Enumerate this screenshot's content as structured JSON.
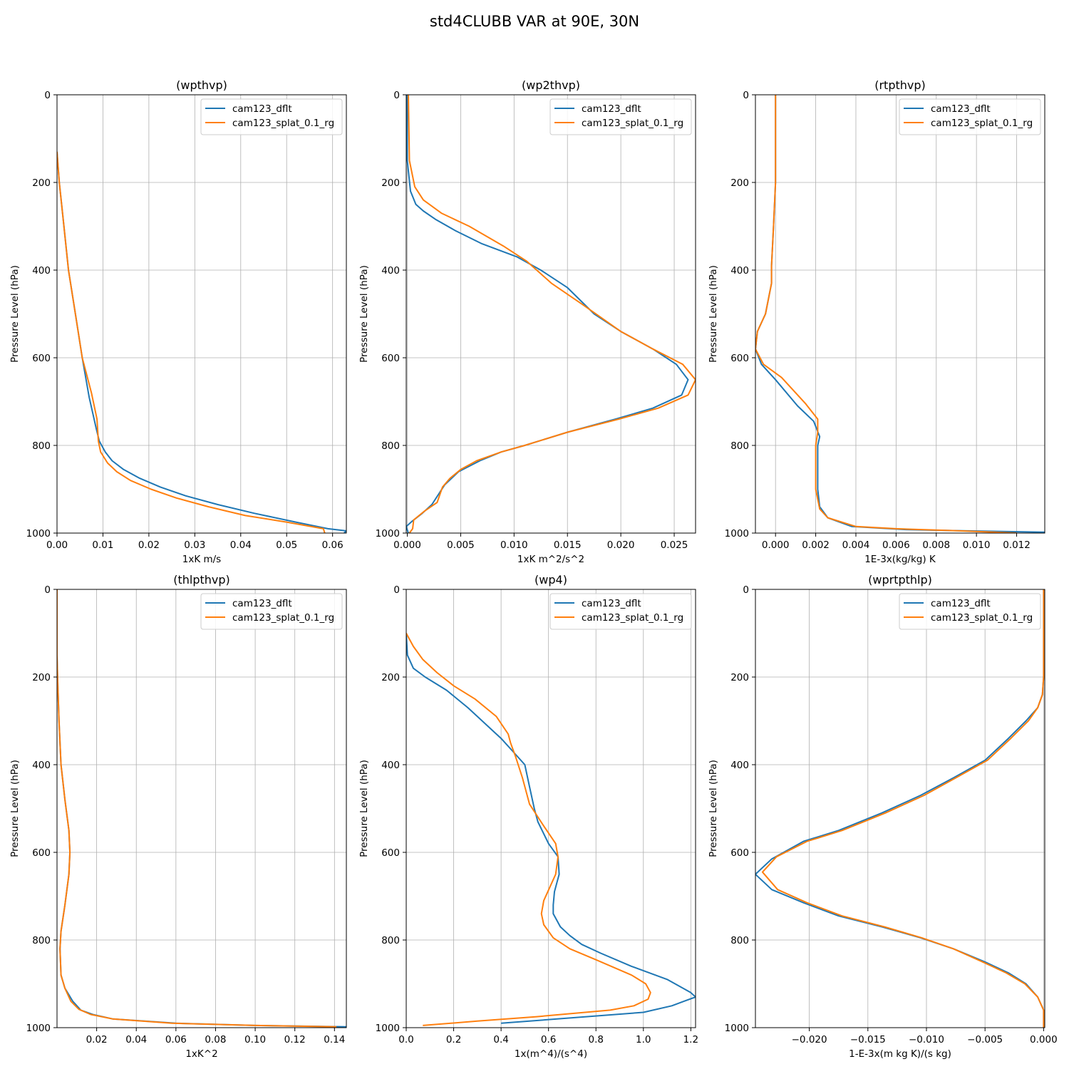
{
  "figure": {
    "suptitle": "std4CLUBB VAR at 90E, 30N"
  },
  "colors": {
    "series_1": "#1f77b4",
    "series_2": "#ff7f0e",
    "grid": "#b0b0b0",
    "legend_border": "#cccccc"
  },
  "chart_data": [
    {
      "type": "line",
      "title": "(wpthvp)",
      "xlabel": "1xK m/s",
      "ylabel": "Pressure Level (hPa)",
      "xlim": [
        0,
        0.063
      ],
      "ylim": [
        1000,
        0
      ],
      "y_inverted": true,
      "xticks": [
        0,
        0.01,
        0.02,
        0.03,
        0.04,
        0.05,
        0.06
      ],
      "xtick_labels": [
        "0.00",
        "0.01",
        "0.02",
        "0.03",
        "0.04",
        "0.05",
        "0.06"
      ],
      "yticks": [
        0,
        200,
        400,
        600,
        800,
        1000
      ],
      "ytick_labels": [
        "0",
        "200",
        "400",
        "600",
        "800",
        "1000"
      ],
      "grid": true,
      "legend": "upper-right",
      "series": [
        {
          "name": "cam123_dflt",
          "x": [
            0,
            0.0005,
            0.0015,
            0.0025,
            0.004,
            0.0055,
            0.007,
            0.0085,
            0.0092,
            0.0105,
            0.012,
            0.0145,
            0.018,
            0.0225,
            0.028,
            0.035,
            0.043,
            0.052,
            0.059,
            0.063,
            0.0625
          ],
          "y": [
            130,
            200,
            300,
            400,
            500,
            600,
            690,
            760,
            790,
            815,
            835,
            855,
            875,
            895,
            915,
            935,
            955,
            975,
            990,
            995,
            1000
          ]
        },
        {
          "name": "cam123_splat_0.1_rg",
          "x": [
            0,
            0.0005,
            0.0015,
            0.0025,
            0.004,
            0.0055,
            0.0075,
            0.0087,
            0.009,
            0.0095,
            0.011,
            0.013,
            0.016,
            0.0205,
            0.026,
            0.033,
            0.041,
            0.05,
            0.058,
            0.0583
          ],
          "y": [
            130,
            200,
            300,
            400,
            500,
            600,
            680,
            740,
            790,
            815,
            840,
            860,
            880,
            900,
            920,
            940,
            960,
            975,
            990,
            1000
          ]
        }
      ]
    },
    {
      "type": "line",
      "title": "(wp2thvp)",
      "xlabel": "1xK m^2/s^2",
      "ylabel": "Pressure Level (hPa)",
      "xlim": [
        -0.0001,
        0.027
      ],
      "ylim": [
        1000,
        0
      ],
      "y_inverted": true,
      "xticks": [
        0,
        0.005,
        0.01,
        0.015,
        0.02,
        0.025
      ],
      "xtick_labels": [
        "0.000",
        "0.005",
        "0.010",
        "0.015",
        "0.020",
        "0.025"
      ],
      "yticks": [
        0,
        200,
        400,
        600,
        800,
        1000
      ],
      "ytick_labels": [
        "0",
        "200",
        "400",
        "600",
        "800",
        "1000"
      ],
      "grid": true,
      "legend": "upper-right",
      "series": [
        {
          "name": "cam123_dflt",
          "x": [
            0,
            0,
            0.0003,
            0.0008,
            0.0015,
            0.0027,
            0.0045,
            0.007,
            0.0103,
            0.0125,
            0.015,
            0.0175,
            0.02,
            0.023,
            0.0252,
            0.0263,
            0.0257,
            0.023,
            0.0195,
            0.015,
            0.011,
            0.0088,
            0.0068,
            0.0048,
            0.0035,
            0.0023,
            0.0014,
            0.0005,
            -0.0001,
            0.0001
          ],
          "y": [
            0,
            150,
            220,
            250,
            265,
            285,
            310,
            340,
            370,
            400,
            440,
            500,
            540,
            580,
            615,
            650,
            685,
            715,
            740,
            770,
            800,
            815,
            835,
            860,
            890,
            935,
            955,
            972,
            985,
            1000
          ]
        },
        {
          "name": "cam123_splat_0.1_rg",
          "x": [
            0.0001,
            0.0002,
            0.0007,
            0.0015,
            0.0032,
            0.0058,
            0.009,
            0.0112,
            0.0135,
            0.0165,
            0.02,
            0.023,
            0.0258,
            0.027,
            0.0263,
            0.0235,
            0.0198,
            0.015,
            0.011,
            0.0088,
            0.0065,
            0.005,
            0.004,
            0.0033,
            0.0028,
            0.0016,
            0.0006,
            0.0005,
            0.0002
          ],
          "y": [
            0,
            150,
            210,
            240,
            270,
            300,
            345,
            380,
            430,
            480,
            540,
            580,
            615,
            650,
            685,
            715,
            740,
            770,
            800,
            815,
            835,
            855,
            875,
            895,
            930,
            950,
            970,
            990,
            1000
          ]
        }
      ]
    },
    {
      "type": "line",
      "title": "(rtpthvp)",
      "xlabel": "1E-3x(kg/kg) K",
      "ylabel": "Pressure Level (hPa)",
      "xlim": [
        -0.001,
        0.0134
      ],
      "ylim": [
        1000,
        0
      ],
      "y_inverted": true,
      "xticks": [
        0,
        0.002,
        0.004,
        0.006,
        0.008,
        0.01,
        0.012
      ],
      "xtick_labels": [
        "0.000",
        "0.002",
        "0.004",
        "0.006",
        "0.008",
        "0.010",
        "0.012"
      ],
      "yticks": [
        0,
        200,
        400,
        600,
        800,
        1000
      ],
      "ytick_labels": [
        "0",
        "200",
        "400",
        "600",
        "800",
        "1000"
      ],
      "grid": true,
      "legend": "upper-right",
      "series": [
        {
          "name": "cam123_dflt",
          "x": [
            0,
            0,
            -0.0001,
            -0.0002,
            -0.0002,
            -0.0005,
            -0.0009,
            -0.001,
            -0.0007,
            0,
            0.0011,
            0.0019,
            0.0022,
            0.0021,
            0.0021,
            0.0022,
            0.0026,
            0.0038,
            0.0065,
            0.0095,
            0.0134
          ],
          "y": [
            0,
            200,
            300,
            390,
            430,
            500,
            540,
            580,
            615,
            650,
            710,
            745,
            780,
            800,
            900,
            940,
            965,
            985,
            992,
            995,
            998
          ]
        },
        {
          "name": "cam123_splat_0.1_rg",
          "x": [
            0,
            0,
            -0.0001,
            -0.0002,
            -0.0002,
            -0.0005,
            -0.0009,
            -0.001,
            -0.0006,
            0.0003,
            0.0015,
            0.0021,
            0.0021,
            0.002,
            0.002,
            0.0022,
            0.0026,
            0.004,
            0.006,
            0.0092,
            0.012
          ],
          "y": [
            0,
            200,
            300,
            390,
            430,
            500,
            540,
            580,
            615,
            645,
            705,
            740,
            770,
            800,
            900,
            945,
            965,
            985,
            990,
            995,
            1000
          ]
        }
      ]
    },
    {
      "type": "line",
      "title": "(thlpthvp)",
      "xlabel": "1xK^2",
      "ylabel": "Pressure Level (hPa)",
      "xlim": [
        0,
        0.146
      ],
      "ylim": [
        1000,
        0
      ],
      "y_inverted": true,
      "xticks": [
        0.02,
        0.04,
        0.06,
        0.08,
        0.1,
        0.12,
        0.14
      ],
      "xtick_labels": [
        "0.02",
        "0.04",
        "0.06",
        "0.08",
        "0.10",
        "0.12",
        "0.14"
      ],
      "yticks": [
        0,
        200,
        400,
        600,
        800,
        1000
      ],
      "ytick_labels": [
        "0",
        "200",
        "400",
        "600",
        "800",
        "1000"
      ],
      "grid": true,
      "legend": "upper-right",
      "series": [
        {
          "name": "cam123_dflt",
          "x": [
            0,
            0,
            0.0003,
            0.001,
            0.002,
            0.004,
            0.006,
            0.0065,
            0.006,
            0.004,
            0.002,
            0.0015,
            0.002,
            0.004,
            0.008,
            0.012,
            0.018,
            0.028,
            0.06,
            0.1,
            0.146
          ],
          "y": [
            0,
            150,
            200,
            300,
            400,
            480,
            550,
            600,
            650,
            720,
            780,
            820,
            880,
            910,
            940,
            960,
            970,
            980,
            990,
            995,
            998
          ]
        },
        {
          "name": "cam123_splat_0.1_rg",
          "x": [
            0,
            0,
            0.0003,
            0.001,
            0.002,
            0.004,
            0.006,
            0.0065,
            0.006,
            0.004,
            0.002,
            0.0015,
            0.002,
            0.004,
            0.007,
            0.011,
            0.017,
            0.028,
            0.058,
            0.1,
            0.141
          ],
          "y": [
            0,
            150,
            200,
            300,
            400,
            480,
            550,
            600,
            650,
            720,
            780,
            820,
            880,
            910,
            940,
            958,
            970,
            980,
            990,
            995,
            998
          ]
        }
      ]
    },
    {
      "type": "line",
      "title": "(wp4)",
      "xlabel": "1x(m^4)/(s^4)",
      "ylabel": "Pressure Level (hPa)",
      "xlim": [
        0,
        1.22
      ],
      "ylim": [
        1000,
        0
      ],
      "y_inverted": true,
      "xticks": [
        0,
        0.2,
        0.4,
        0.6,
        0.8,
        1.0,
        1.2
      ],
      "xtick_labels": [
        "0.0",
        "0.2",
        "0.4",
        "0.6",
        "0.8",
        "1.0",
        "1.2"
      ],
      "yticks": [
        0,
        200,
        400,
        600,
        800,
        1000
      ],
      "ytick_labels": [
        "0",
        "200",
        "400",
        "600",
        "800",
        "1000"
      ],
      "grid": true,
      "legend": "upper-right",
      "series": [
        {
          "name": "cam123_dflt",
          "x": [
            0,
            0.005,
            0.03,
            0.08,
            0.17,
            0.26,
            0.34,
            0.4,
            0.45,
            0.5,
            0.52,
            0.54,
            0.555,
            0.6,
            0.64,
            0.645,
            0.625,
            0.62,
            0.62,
            0.65,
            0.69,
            0.74,
            0.82,
            0.95,
            1.1,
            1.2,
            1.22,
            1.17,
            1.12,
            1.0,
            0.4
          ],
          "y": [
            100,
            150,
            180,
            200,
            230,
            270,
            310,
            340,
            370,
            400,
            450,
            500,
            530,
            580,
            610,
            650,
            690,
            720,
            740,
            770,
            790,
            810,
            830,
            860,
            890,
            920,
            930,
            940,
            950,
            965,
            990
          ]
        },
        {
          "name": "cam123_splat_0.1_rg",
          "x": [
            0,
            0.03,
            0.07,
            0.13,
            0.2,
            0.29,
            0.38,
            0.43,
            0.44,
            0.46,
            0.49,
            0.52,
            0.58,
            0.63,
            0.64,
            0.63,
            0.58,
            0.57,
            0.58,
            0.62,
            0.69,
            0.8,
            0.95,
            1.01,
            1.03,
            1.02,
            0.96,
            0.86,
            0.55,
            0.3,
            0.07
          ],
          "y": [
            100,
            130,
            160,
            190,
            220,
            250,
            290,
            330,
            350,
            380,
            430,
            490,
            540,
            580,
            610,
            650,
            710,
            740,
            765,
            795,
            820,
            845,
            880,
            900,
            920,
            935,
            950,
            960,
            975,
            985,
            995
          ]
        }
      ]
    },
    {
      "type": "line",
      "title": "(wprtpthlp)",
      "xlabel": "1-E-3x(m kg K)/(s kg)",
      "ylabel": "Pressure Level (hPa)",
      "xlim": [
        -0.0246,
        0.0001
      ],
      "ylim": [
        1000,
        0
      ],
      "y_inverted": true,
      "xticks": [
        -0.02,
        -0.015,
        -0.01,
        -0.005,
        0
      ],
      "xtick_labels": [
        "−0.020",
        "−0.015",
        "−0.010",
        "−0.005",
        "0.000"
      ],
      "yticks": [
        0,
        200,
        400,
        600,
        800,
        1000
      ],
      "ytick_labels": [
        "0",
        "200",
        "400",
        "600",
        "800",
        "1000"
      ],
      "grid": true,
      "legend": "upper-right",
      "series": [
        {
          "name": "cam123_dflt",
          "x": [
            0,
            0,
            -0.0001,
            -0.0005,
            -0.0015,
            -0.003,
            -0.005,
            -0.0077,
            -0.0105,
            -0.0138,
            -0.0175,
            -0.0205,
            -0.0232,
            -0.0246,
            -0.0232,
            -0.0205,
            -0.0175,
            -0.0138,
            -0.0105,
            -0.0077,
            -0.005,
            -0.003,
            -0.0015,
            -0.0005,
            0,
            0
          ],
          "y": [
            0,
            200,
            240,
            270,
            300,
            340,
            390,
            430,
            470,
            510,
            550,
            575,
            615,
            650,
            685,
            715,
            745,
            770,
            795,
            820,
            850,
            875,
            900,
            930,
            960,
            1000
          ]
        },
        {
          "name": "cam123_splat_0.1_rg",
          "x": [
            0,
            0,
            -0.0001,
            -0.0005,
            -0.0013,
            -0.0028,
            -0.0048,
            -0.0075,
            -0.0102,
            -0.0135,
            -0.0172,
            -0.0202,
            -0.0228,
            -0.024,
            -0.0227,
            -0.0202,
            -0.0172,
            -0.0136,
            -0.0104,
            -0.0077,
            -0.0052,
            -0.0032,
            -0.0016,
            -0.0005,
            0,
            0
          ],
          "y": [
            0,
            200,
            240,
            270,
            300,
            340,
            390,
            430,
            470,
            510,
            550,
            575,
            610,
            645,
            685,
            715,
            745,
            770,
            795,
            820,
            850,
            875,
            900,
            930,
            960,
            1000
          ]
        }
      ]
    }
  ]
}
